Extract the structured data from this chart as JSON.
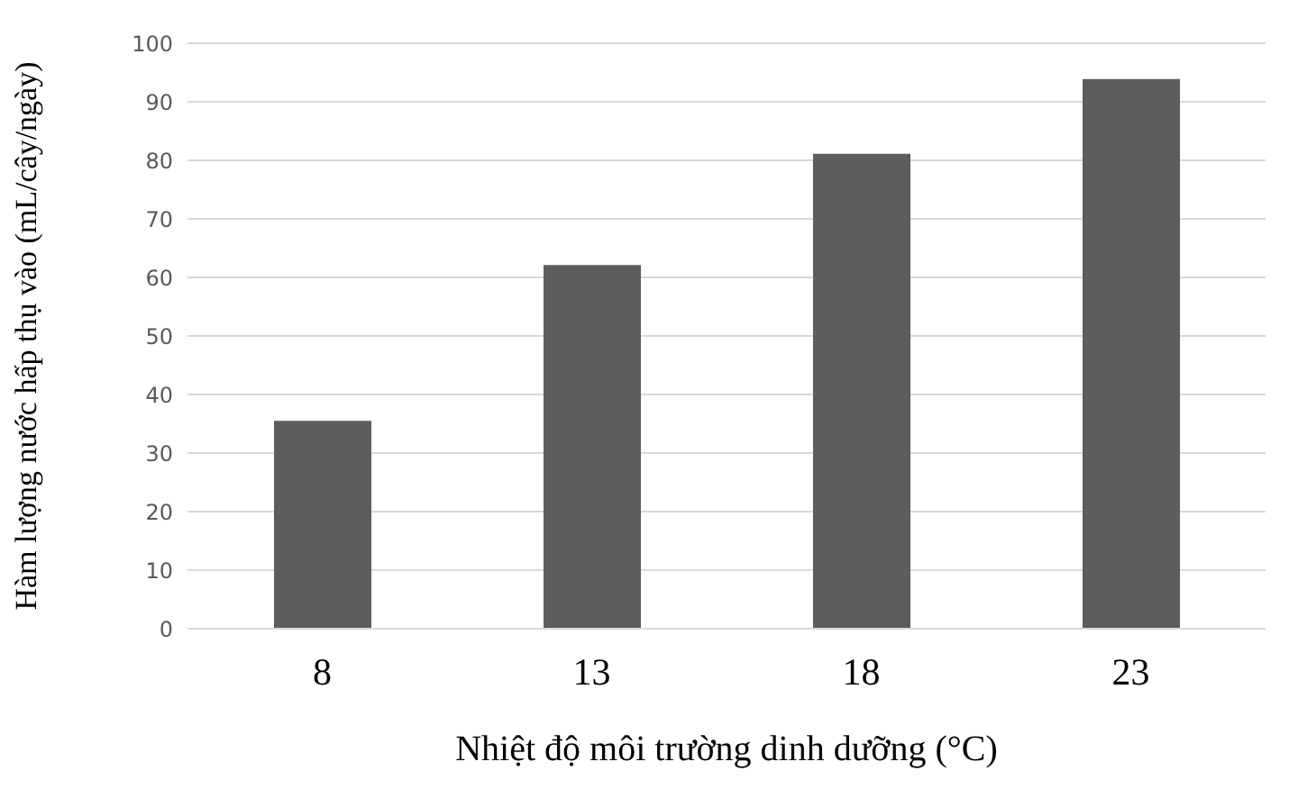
{
  "chart_data": {
    "type": "bar",
    "xlabel": "Nhiệt độ môi trường dinh dưỡng (°C)",
    "ylabel": "Hàm lượng nước hấp thụ vào (mL/cây/ngày)",
    "categories": [
      "8",
      "13",
      "18",
      "23"
    ],
    "values": [
      35.5,
      62.1,
      81.1,
      93.9
    ],
    "color": "#5d5d5d",
    "ylim": [
      0,
      100
    ],
    "yticks": [
      0,
      10,
      20,
      30,
      40,
      50,
      60,
      70,
      80,
      90,
      100
    ],
    "grid": "y"
  }
}
